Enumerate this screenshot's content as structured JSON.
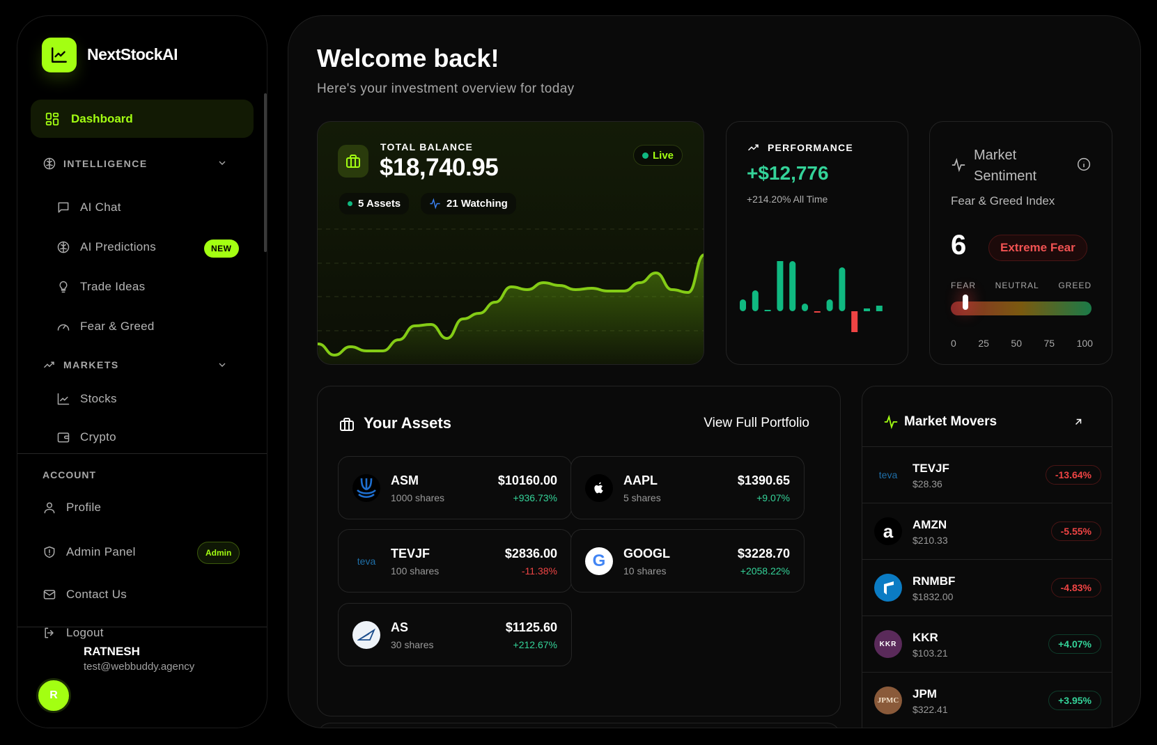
{
  "brand": {
    "name": "NextStockAI"
  },
  "sidebar": {
    "active": "Dashboard",
    "intelligence": {
      "title": "INTELLIGENCE",
      "items": [
        {
          "label": "AI Chat",
          "icon": "message-square-icon"
        },
        {
          "label": "AI Predictions",
          "icon": "brain-icon",
          "badge": "NEW"
        },
        {
          "label": "Trade Ideas",
          "icon": "lightbulb-icon"
        },
        {
          "label": "Fear & Greed",
          "icon": "gauge-icon"
        }
      ]
    },
    "markets": {
      "title": "MARKETS",
      "items": [
        {
          "label": "Stocks",
          "icon": "line-chart-icon"
        },
        {
          "label": "Crypto",
          "icon": "wallet-icon"
        }
      ]
    },
    "account": {
      "title": "ACCOUNT",
      "items": [
        {
          "label": "Profile",
          "icon": "user-icon"
        },
        {
          "label": "Admin Panel",
          "icon": "shield-icon",
          "badge": "Admin"
        },
        {
          "label": "Contact Us",
          "icon": "mail-icon"
        },
        {
          "label": "Logout",
          "icon": "logout-icon"
        }
      ]
    },
    "user": {
      "initial": "R",
      "name": "RATNESH",
      "email": "test@webbuddy.agency"
    }
  },
  "header": {
    "title": "Welcome back!",
    "subtitle": "Here's your investment overview for today"
  },
  "balance": {
    "label": "TOTAL BALANCE",
    "amount": "$18,740.95",
    "live": "Live",
    "assets": "5 Assets",
    "watching": "21 Watching",
    "accent": "#a3ff12"
  },
  "performance": {
    "label": "PERFORMANCE",
    "value": "+$12,776",
    "sub": "+214.20% All Time"
  },
  "sentiment": {
    "title1": "Market",
    "title2": "Sentiment",
    "subtitle": "Fear & Greed Index",
    "value": "6",
    "level": "Extreme Fear",
    "scale_labels": [
      "FEAR",
      "NEUTRAL",
      "GREED"
    ],
    "ticks": [
      "0",
      "25",
      "50",
      "75",
      "100"
    ],
    "index": 6
  },
  "chart_data": [
    {
      "type": "area",
      "series": [
        {
          "values": [
            14,
            6,
            12,
            9,
            9,
            17,
            27,
            28,
            18,
            32,
            36,
            44,
            55,
            53,
            58,
            56,
            53,
            54,
            52,
            52,
            58,
            65,
            53,
            51,
            78
          ]
        }
      ],
      "color": "#84cc16",
      "grid": true
    },
    {
      "type": "bar",
      "values": [
        17,
        30,
        2,
        84,
        72,
        11,
        -2,
        17,
        63,
        -30,
        4,
        8
      ],
      "colors": {
        "positive": "#10b981",
        "negative": "#ef4444"
      }
    }
  ],
  "assets": {
    "title": "Your Assets",
    "view_all": "View Full Portfolio",
    "items": [
      {
        "symbol": "ASM",
        "shares": "1000 shares",
        "price": "$10160.00",
        "change": "+936.73%",
        "positive": true,
        "logo": "asm"
      },
      {
        "symbol": "AAPL",
        "shares": "5 shares",
        "price": "$1390.65",
        "change": "+9.07%",
        "positive": true,
        "logo": "apple"
      },
      {
        "symbol": "TEVJF",
        "shares": "100 shares",
        "price": "$2836.00",
        "change": "-11.38%",
        "positive": false,
        "logo": "teva"
      },
      {
        "symbol": "GOOGL",
        "shares": "10 shares",
        "price": "$3228.70",
        "change": "+2058.22%",
        "positive": true,
        "logo": "google"
      },
      {
        "symbol": "AS",
        "shares": "30 shares",
        "price": "$1125.60",
        "change": "+212.67%",
        "positive": true,
        "logo": "as"
      }
    ]
  },
  "movers": {
    "title": "Market Movers",
    "items": [
      {
        "symbol": "TEVJF",
        "price": "$28.36",
        "change": "-13.64%",
        "positive": false,
        "logo": "teva"
      },
      {
        "symbol": "AMZN",
        "price": "$210.33",
        "change": "-5.55%",
        "positive": false,
        "logo": "amazon"
      },
      {
        "symbol": "RNMBF",
        "price": "$1832.00",
        "change": "-4.83%",
        "positive": false,
        "logo": "rnmbf"
      },
      {
        "symbol": "KKR",
        "price": "$103.21",
        "change": "+4.07%",
        "positive": true,
        "logo": "kkr"
      },
      {
        "symbol": "JPM",
        "price": "$322.41",
        "change": "+3.95%",
        "positive": true,
        "logo": "jpmc"
      }
    ]
  }
}
